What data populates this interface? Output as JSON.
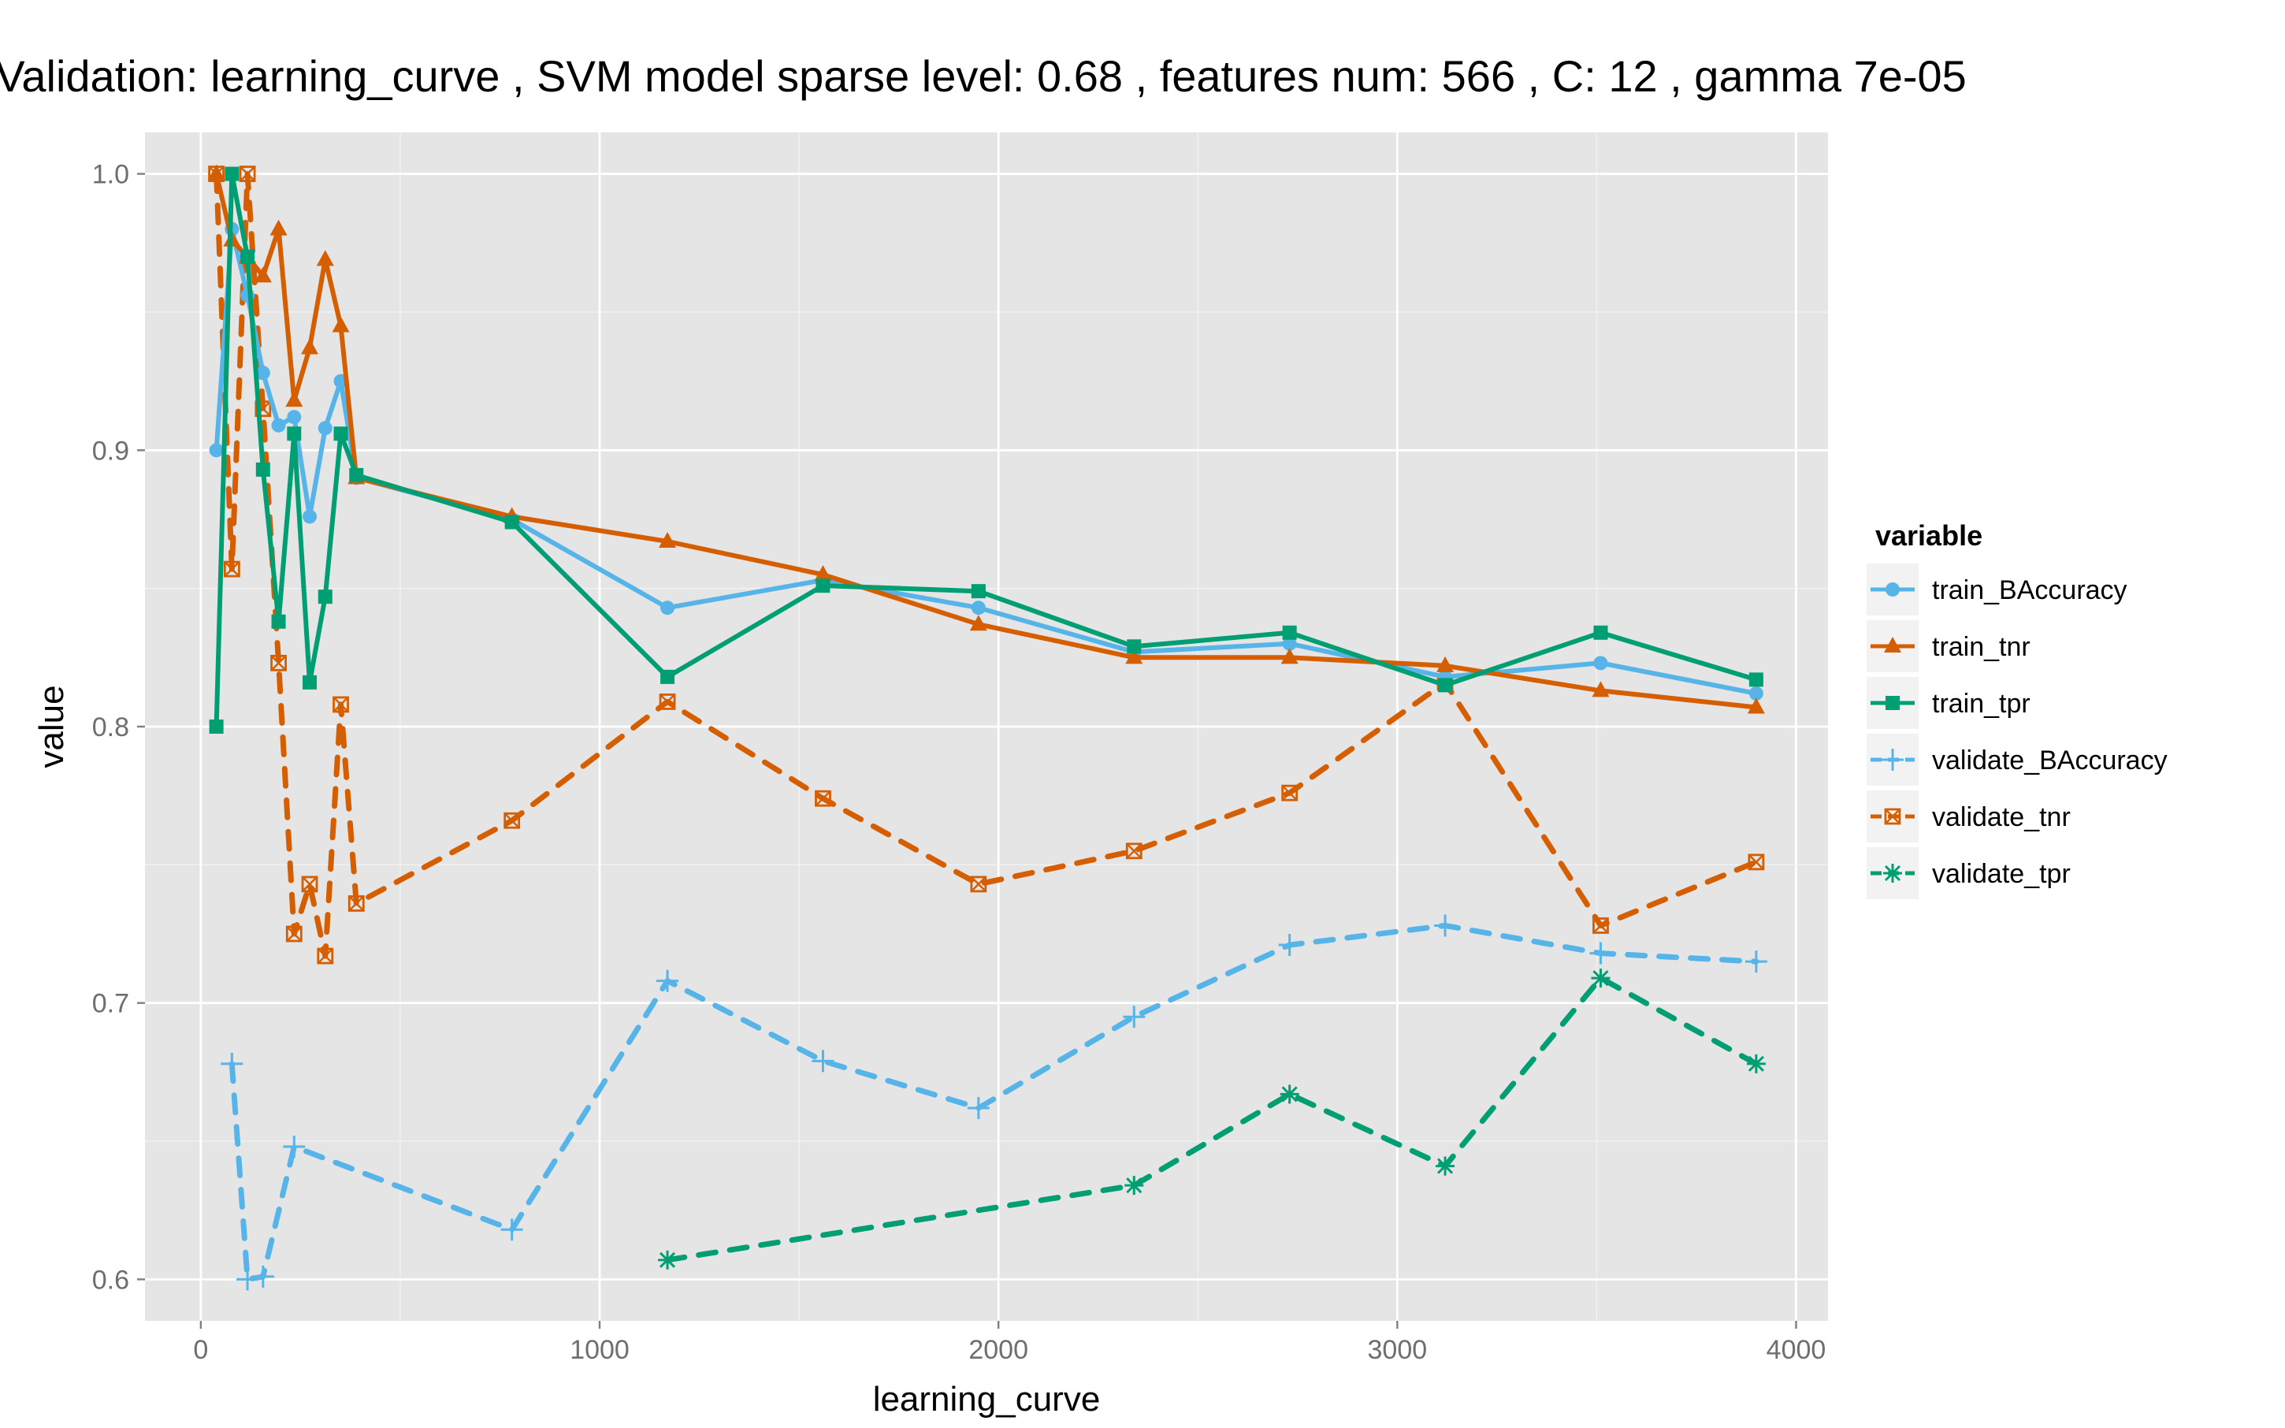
{
  "chart_data": {
    "type": "line",
    "title": "Validation:  learning_curve ,  SVM model sparse level: 0.68 , features num: 566 , C:  12 , gamma 7e-05",
    "xlabel": "learning_curve",
    "ylabel": "value",
    "xlim": [
      -140,
      4080
    ],
    "ylim": [
      0.585,
      1.015
    ],
    "xticks": [
      0,
      1000,
      2000,
      3000,
      4000
    ],
    "yticks": [
      0.6,
      0.7,
      0.8,
      0.9,
      1.0
    ],
    "ytick_labels": [
      "0.6",
      "0.7",
      "0.8",
      "0.9",
      "1.0"
    ],
    "grid": true,
    "background": "#e5e5e5",
    "legend": {
      "title": "variable",
      "position": "right"
    },
    "series": [
      {
        "name": "train_BAccuracy",
        "color": "#56b4e9",
        "line": "solid",
        "marker": "circle",
        "points": [
          [
            39,
            0.9
          ],
          [
            78,
            0.98
          ],
          [
            117,
            0.956
          ],
          [
            156,
            0.928
          ],
          [
            195,
            0.909
          ],
          [
            234,
            0.912
          ],
          [
            273,
            0.876
          ],
          [
            312,
            0.908
          ],
          [
            351,
            0.925
          ],
          [
            390,
            0.89
          ],
          [
            780,
            0.875
          ],
          [
            1170,
            0.843
          ],
          [
            1560,
            0.853
          ],
          [
            1950,
            0.843
          ],
          [
            2340,
            0.827
          ],
          [
            2730,
            0.83
          ],
          [
            3120,
            0.818
          ],
          [
            3510,
            0.823
          ],
          [
            3900,
            0.812
          ]
        ]
      },
      {
        "name": "train_tnr",
        "color": "#d55e00",
        "line": "solid",
        "marker": "triangle",
        "points": [
          [
            39,
            1.0
          ],
          [
            78,
            0.976
          ],
          [
            117,
            0.97
          ],
          [
            156,
            0.963
          ],
          [
            195,
            0.98
          ],
          [
            234,
            0.918
          ],
          [
            273,
            0.937
          ],
          [
            312,
            0.969
          ],
          [
            351,
            0.945
          ],
          [
            390,
            0.89
          ],
          [
            780,
            0.876
          ],
          [
            1170,
            0.867
          ],
          [
            1560,
            0.855
          ],
          [
            1950,
            0.837
          ],
          [
            2340,
            0.825
          ],
          [
            2730,
            0.825
          ],
          [
            3120,
            0.822
          ],
          [
            3510,
            0.813
          ],
          [
            3900,
            0.807
          ]
        ]
      },
      {
        "name": "train_tpr",
        "color": "#009e73",
        "line": "solid",
        "marker": "square",
        "points": [
          [
            39,
            0.8
          ],
          [
            78,
            1.0
          ],
          [
            117,
            0.97
          ],
          [
            156,
            0.893
          ],
          [
            195,
            0.838
          ],
          [
            234,
            0.906
          ],
          [
            273,
            0.816
          ],
          [
            312,
            0.847
          ],
          [
            351,
            0.906
          ],
          [
            390,
            0.891
          ],
          [
            780,
            0.874
          ],
          [
            1170,
            0.818
          ],
          [
            1560,
            0.851
          ],
          [
            1950,
            0.849
          ],
          [
            2340,
            0.829
          ],
          [
            2730,
            0.834
          ],
          [
            3120,
            0.815
          ],
          [
            3510,
            0.834
          ],
          [
            3900,
            0.817
          ]
        ]
      },
      {
        "name": "validate_BAccuracy",
        "color": "#56b4e9",
        "line": "dashed",
        "marker": "plus",
        "points": [
          [
            78,
            0.678
          ],
          [
            117,
            0.6
          ],
          [
            156,
            0.601
          ],
          [
            234,
            0.648
          ],
          [
            780,
            0.618
          ],
          [
            1170,
            0.708
          ],
          [
            1560,
            0.679
          ],
          [
            1950,
            0.662
          ],
          [
            2340,
            0.695
          ],
          [
            2730,
            0.721
          ],
          [
            3120,
            0.728
          ],
          [
            3510,
            0.718
          ],
          [
            3900,
            0.715
          ]
        ]
      },
      {
        "name": "validate_tnr",
        "color": "#d55e00",
        "line": "dashed",
        "marker": "boxcross",
        "points": [
          [
            39,
            1.0
          ],
          [
            78,
            0.857
          ],
          [
            117,
            1.0
          ],
          [
            156,
            0.915
          ],
          [
            195,
            0.823
          ],
          [
            234,
            0.725
          ],
          [
            273,
            0.743
          ],
          [
            312,
            0.717
          ],
          [
            351,
            0.808
          ],
          [
            390,
            0.736
          ],
          [
            780,
            0.766
          ],
          [
            1170,
            0.809
          ],
          [
            1560,
            0.774
          ],
          [
            1950,
            0.743
          ],
          [
            2340,
            0.755
          ],
          [
            2730,
            0.776
          ],
          [
            3120,
            0.816
          ],
          [
            3510,
            0.728
          ],
          [
            3900,
            0.751
          ]
        ]
      },
      {
        "name": "validate_tpr",
        "color": "#009e73",
        "line": "dashed",
        "marker": "asterisk",
        "points": [
          [
            1170,
            0.607
          ],
          [
            2340,
            0.634
          ],
          [
            2730,
            0.667
          ],
          [
            3120,
            0.641
          ],
          [
            3510,
            0.709
          ],
          [
            3900,
            0.678
          ]
        ]
      }
    ]
  }
}
